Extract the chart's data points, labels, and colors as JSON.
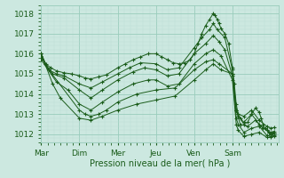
{
  "bg_color": "#cce8e0",
  "grid_major_color": "#99ccbb",
  "grid_minor_color": "#bbddd5",
  "line_color": "#1a5c1a",
  "ylabel_ticks": [
    1012,
    1013,
    1014,
    1015,
    1016,
    1017,
    1018
  ],
  "xlim": [
    0,
    6.2
  ],
  "ylim": [
    1011.6,
    1018.4
  ],
  "xlabel": "Pression niveau de la mer( hPa )",
  "xtick_labels": [
    "Mar",
    "Dim",
    "Mer",
    "Jeu",
    "Ven",
    "Sam"
  ],
  "xtick_positions": [
    0.0,
    1.0,
    2.0,
    3.0,
    4.0,
    5.0
  ],
  "series": [
    [
      0.0,
      1016.0,
      0.12,
      1015.5,
      0.25,
      1015.3,
      0.4,
      1015.15,
      0.6,
      1015.05,
      0.8,
      1015.0,
      1.0,
      1014.9,
      1.15,
      1014.8,
      1.3,
      1014.75,
      1.5,
      1014.85,
      1.7,
      1014.95,
      2.0,
      1015.3,
      2.2,
      1015.5,
      2.4,
      1015.7,
      2.6,
      1015.85,
      2.8,
      1016.0,
      3.0,
      1016.0,
      3.15,
      1015.85,
      3.3,
      1015.7,
      3.45,
      1015.55,
      3.6,
      1015.5,
      3.75,
      1015.55,
      3.9,
      1015.7,
      4.0,
      1016.0,
      4.1,
      1016.5,
      4.2,
      1017.0,
      4.3,
      1017.4,
      4.4,
      1017.7,
      4.5,
      1018.0,
      4.55,
      1017.9,
      4.6,
      1017.7,
      4.65,
      1017.5,
      4.7,
      1017.25,
      4.8,
      1017.0,
      4.9,
      1016.5,
      5.0,
      1015.3,
      5.05,
      1014.5,
      5.1,
      1013.5,
      5.15,
      1013.0,
      5.2,
      1012.8,
      5.3,
      1012.5,
      5.4,
      1012.6,
      5.5,
      1013.0,
      5.6,
      1013.3,
      5.7,
      1013.1,
      5.75,
      1012.8,
      5.8,
      1012.5,
      5.85,
      1012.3,
      5.9,
      1012.2,
      5.95,
      1012.1,
      6.0,
      1012.0,
      6.05,
      1012.1,
      6.1,
      1012.05
    ],
    [
      0.0,
      1015.9,
      0.2,
      1015.2,
      0.4,
      1015.0,
      0.6,
      1014.9,
      1.0,
      1014.5,
      1.3,
      1014.3,
      1.6,
      1014.6,
      2.0,
      1015.0,
      2.3,
      1015.3,
      2.6,
      1015.55,
      3.0,
      1015.5,
      3.3,
      1015.2,
      3.6,
      1015.3,
      4.0,
      1016.3,
      4.2,
      1016.8,
      4.4,
      1017.2,
      4.5,
      1017.5,
      4.6,
      1017.2,
      4.8,
      1016.8,
      5.0,
      1015.2,
      5.1,
      1013.2,
      5.15,
      1012.9,
      5.2,
      1012.5,
      5.4,
      1012.4,
      5.6,
      1012.7,
      5.8,
      1012.3,
      6.0,
      1012.1,
      6.1,
      1012.15
    ],
    [
      0.0,
      1015.8,
      0.3,
      1015.0,
      0.6,
      1014.8,
      1.0,
      1014.2,
      1.3,
      1013.8,
      1.6,
      1014.2,
      2.0,
      1014.7,
      2.4,
      1015.1,
      2.7,
      1015.3,
      3.0,
      1015.2,
      3.3,
      1014.9,
      3.6,
      1015.0,
      4.0,
      1016.0,
      4.3,
      1016.5,
      4.5,
      1016.9,
      4.65,
      1016.6,
      4.8,
      1016.2,
      5.0,
      1014.9,
      5.1,
      1012.8,
      5.15,
      1012.5,
      5.3,
      1012.1,
      5.5,
      1012.3,
      5.7,
      1012.4,
      5.9,
      1011.95,
      6.0,
      1011.9,
      6.1,
      1011.95
    ],
    [
      0.0,
      1015.7,
      0.4,
      1014.6,
      0.7,
      1014.2,
      1.0,
      1013.5,
      1.3,
      1013.2,
      1.6,
      1013.6,
      2.0,
      1014.1,
      2.4,
      1014.5,
      2.8,
      1014.7,
      3.0,
      1014.7,
      3.3,
      1014.4,
      3.6,
      1014.5,
      4.0,
      1015.5,
      4.3,
      1016.0,
      4.5,
      1016.2,
      4.7,
      1015.9,
      5.0,
      1014.7,
      5.1,
      1012.5,
      5.15,
      1012.2,
      5.3,
      1011.9,
      5.5,
      1012.0,
      5.7,
      1012.1,
      5.9,
      1011.85,
      6.0,
      1011.85,
      6.1,
      1011.9
    ],
    [
      0.0,
      1016.0,
      0.1,
      1015.5,
      0.2,
      1015.2,
      1.0,
      1013.2,
      1.15,
      1013.0,
      1.3,
      1012.9,
      1.5,
      1013.0,
      1.7,
      1013.2,
      2.0,
      1013.6,
      2.5,
      1014.0,
      3.0,
      1014.2,
      3.5,
      1014.3,
      4.0,
      1015.2,
      4.3,
      1015.6,
      4.5,
      1015.7,
      4.65,
      1015.5,
      5.0,
      1015.0,
      5.1,
      1013.2,
      5.15,
      1012.9,
      5.3,
      1012.6,
      5.5,
      1013.0,
      5.7,
      1012.5,
      5.9,
      1012.2,
      6.0,
      1012.0,
      6.1,
      1012.05
    ],
    [
      0.0,
      1016.0,
      0.3,
      1014.5,
      0.5,
      1013.8,
      1.0,
      1012.8,
      1.3,
      1012.7,
      1.6,
      1012.9,
      2.0,
      1013.2,
      2.5,
      1013.5,
      3.0,
      1013.7,
      3.5,
      1013.9,
      4.0,
      1014.7,
      4.3,
      1015.2,
      4.5,
      1015.5,
      4.7,
      1015.2,
      5.0,
      1015.0,
      5.1,
      1013.2,
      5.15,
      1013.0,
      5.3,
      1012.9,
      5.5,
      1013.2,
      5.7,
      1012.7,
      5.9,
      1012.4,
      6.0,
      1012.3,
      6.1,
      1012.35
    ]
  ]
}
